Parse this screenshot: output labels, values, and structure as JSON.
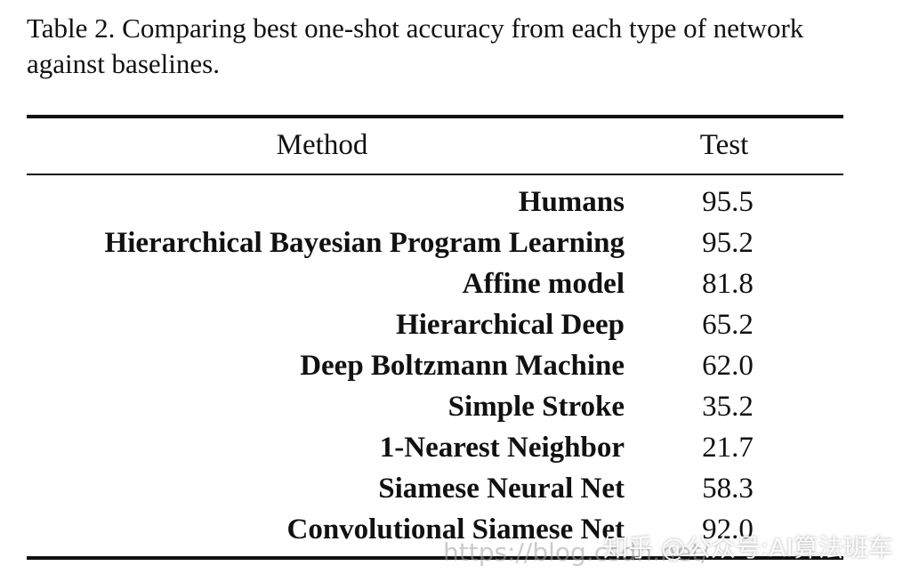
{
  "caption": "Table 2.  Comparing best one-shot accuracy from each type of network against baselines.",
  "table": {
    "headers": {
      "method": "Method",
      "test": "Test"
    },
    "rows": [
      {
        "method": "Humans",
        "test": "95.5"
      },
      {
        "method": "Hierarchical Bayesian Program Learning",
        "test": "95.2"
      },
      {
        "method": "Affine model",
        "test": "81.8"
      },
      {
        "method": "Hierarchical Deep",
        "test": "65.2"
      },
      {
        "method": "Deep Boltzmann Machine",
        "test": "62.0"
      },
      {
        "method": "Simple Stroke",
        "test": "35.2"
      },
      {
        "method": "1-Nearest Neighbor",
        "test": "21.7"
      },
      {
        "method": "Siamese Neural Net",
        "test": "58.3"
      },
      {
        "method": "Convolutional Siamese Net",
        "test": "92.0"
      }
    ]
  },
  "watermarks": {
    "url": "https://blog.csdn.net/",
    "account": "知乎 @公众号:AI算法班车"
  }
}
